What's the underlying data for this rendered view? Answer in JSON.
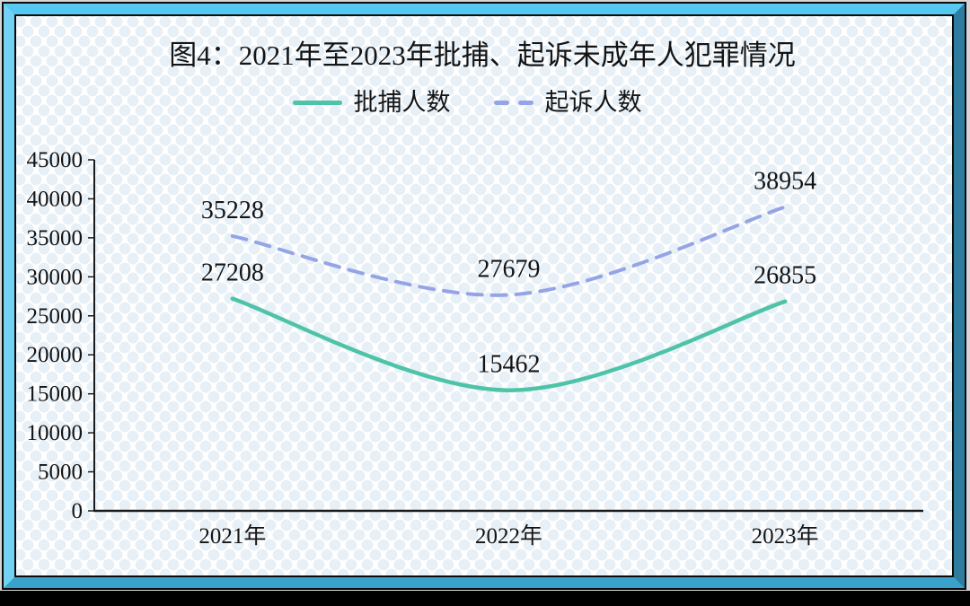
{
  "figure": {
    "caption_prefix": "图4"
  },
  "chart_data": {
    "type": "line",
    "title": "图4：2021年至2023年批捕、起诉未成年人犯罪情况",
    "categories": [
      "2021年",
      "2022年",
      "2023年"
    ],
    "series": [
      {
        "name": "批捕人数",
        "style": "solid",
        "color": "#4EC3A7",
        "values": [
          27208,
          15462,
          26855
        ]
      },
      {
        "name": "起诉人数",
        "style": "dashed",
        "color": "#95A4E6",
        "values": [
          35228,
          27679,
          38954
        ]
      }
    ],
    "data_labels_shown": true,
    "xlabel": "",
    "ylabel": "",
    "ylim": [
      0,
      45000
    ],
    "yticks": [
      0,
      5000,
      10000,
      15000,
      20000,
      25000,
      30000,
      35000,
      40000,
      45000
    ],
    "grid": false,
    "legend_position": "top",
    "line_smoothing": "spline"
  },
  "colors": {
    "axis": "#1A1A1A",
    "text": "#141414",
    "canvas_pattern": "#E7F0F7",
    "bottom_bar": "#000000",
    "frame": {
      "top": "#55C9F1",
      "left": "#73D1F3",
      "right": "#2E7CA0",
      "bottom": "#39A2CB"
    }
  }
}
